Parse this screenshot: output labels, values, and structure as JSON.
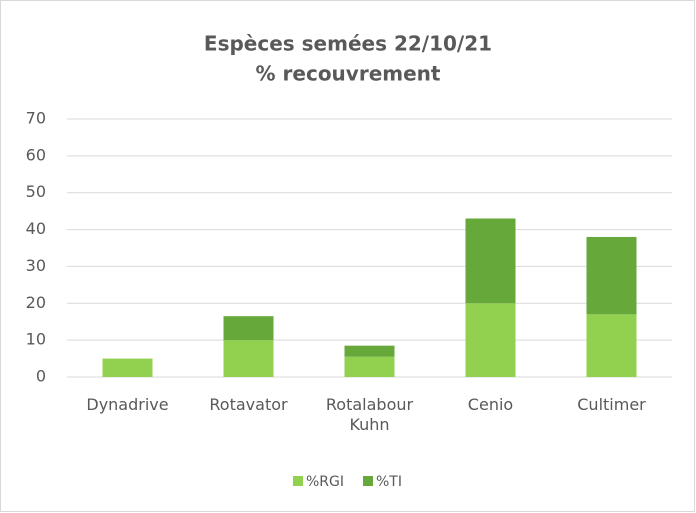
{
  "chart_data": {
    "type": "stacked_bar",
    "title": [
      "Espèces semées 22/10/21",
      "% recouvrement"
    ],
    "categories": [
      "Dynadrive",
      "Rotavator",
      "Rotalabour Kuhn",
      "Cenio",
      "Cultimer"
    ],
    "series": [
      {
        "name": "%RGI",
        "color": "#92d050",
        "values": [
          5,
          10,
          5.5,
          20,
          17
        ]
      },
      {
        "name": "%TI",
        "color": "#66a83a",
        "values": [
          0,
          6.5,
          3,
          23,
          21
        ]
      }
    ],
    "ylim": [
      0,
      70
    ],
    "yticks": [
      0,
      10,
      20,
      30,
      40,
      50,
      60,
      70
    ],
    "grid": true,
    "legend": "bottom"
  }
}
